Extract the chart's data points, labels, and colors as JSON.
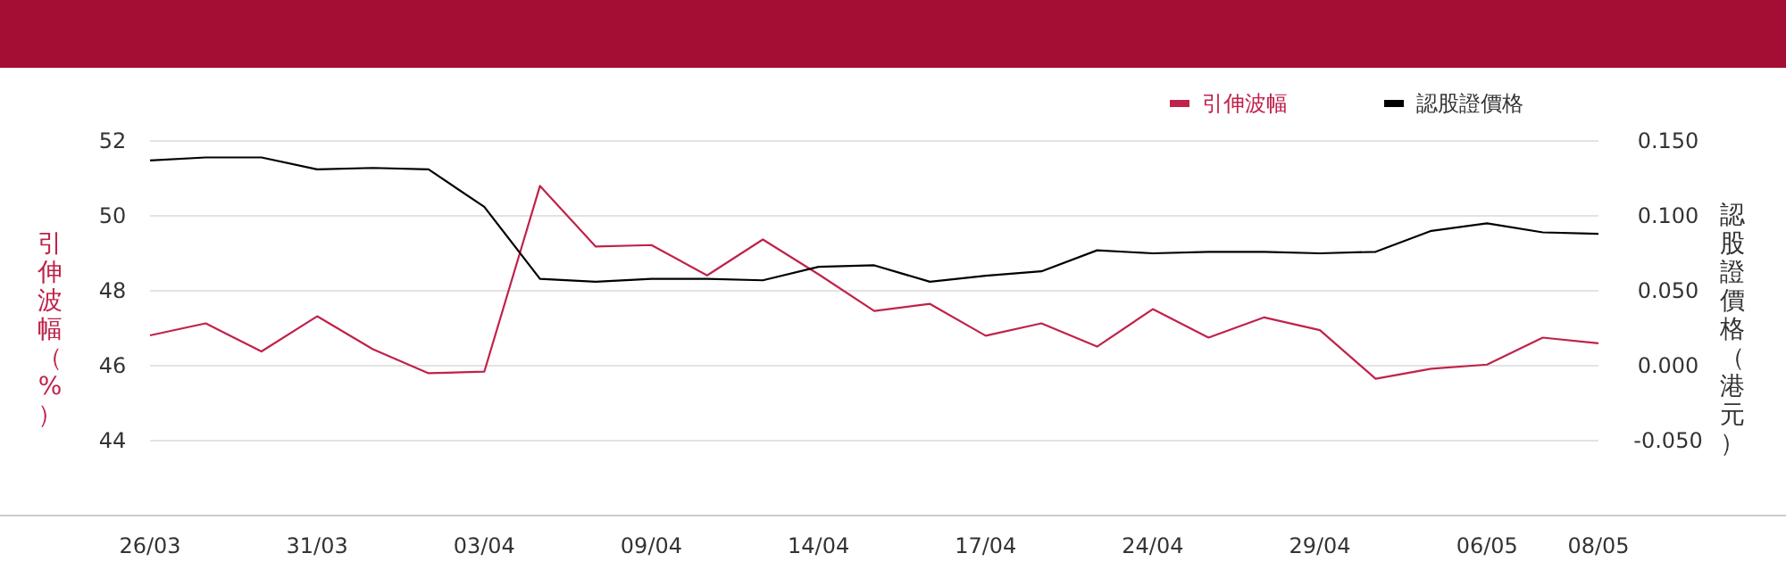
{
  "chart_data": {
    "type": "line",
    "categories": [
      "26/03",
      null,
      null,
      "31/03",
      null,
      null,
      "03/04",
      null,
      null,
      "09/04",
      null,
      null,
      "14/04",
      null,
      null,
      "17/04",
      null,
      null,
      "24/04",
      null,
      null,
      "29/04",
      null,
      null,
      "06/05",
      null,
      "08/05"
    ],
    "series": [
      {
        "name": "引伸波幅",
        "color": "#c0224a",
        "values": [
          46.81,
          47.13,
          46.38,
          47.32,
          46.44,
          45.8,
          45.84,
          50.8,
          49.18,
          49.22,
          48.41,
          49.37,
          48.44,
          47.46,
          47.65,
          46.8,
          47.13,
          46.51,
          47.51,
          46.75,
          47.29,
          46.95,
          45.65,
          45.92,
          46.03,
          46.75,
          46.6
        ]
      },
      {
        "name": "認股證價格",
        "color": "#000000",
        "axis": "y2",
        "values": [
          0.137,
          0.139,
          0.139,
          0.131,
          0.132,
          0.131,
          0.106,
          0.058,
          0.056,
          0.058,
          0.058,
          0.057,
          0.066,
          0.067,
          0.056,
          0.06,
          0.063,
          0.077,
          0.075,
          0.076,
          0.076,
          0.075,
          0.076,
          0.09,
          0.095,
          0.089,
          0.088
        ]
      }
    ],
    "ylabel": "引伸波幅（%）",
    "y2label": "認股證價格（港元）",
    "ylim": [
      42,
      52
    ],
    "yticks": [
      44,
      46,
      48,
      50,
      52
    ],
    "y2lim": [
      -0.1,
      0.15
    ],
    "y2ticks": [
      {
        "value": -0.05,
        "label": "-0.050"
      },
      {
        "value": 0,
        "label": "0.000"
      },
      {
        "value": 0.05,
        "label": "0.050"
      },
      {
        "value": 0.1,
        "label": "0.100"
      },
      {
        "value": 0.15,
        "label": "0.150"
      }
    ],
    "grid": "y",
    "legend": "top right",
    "marker": "none",
    "line_style": "solid"
  }
}
